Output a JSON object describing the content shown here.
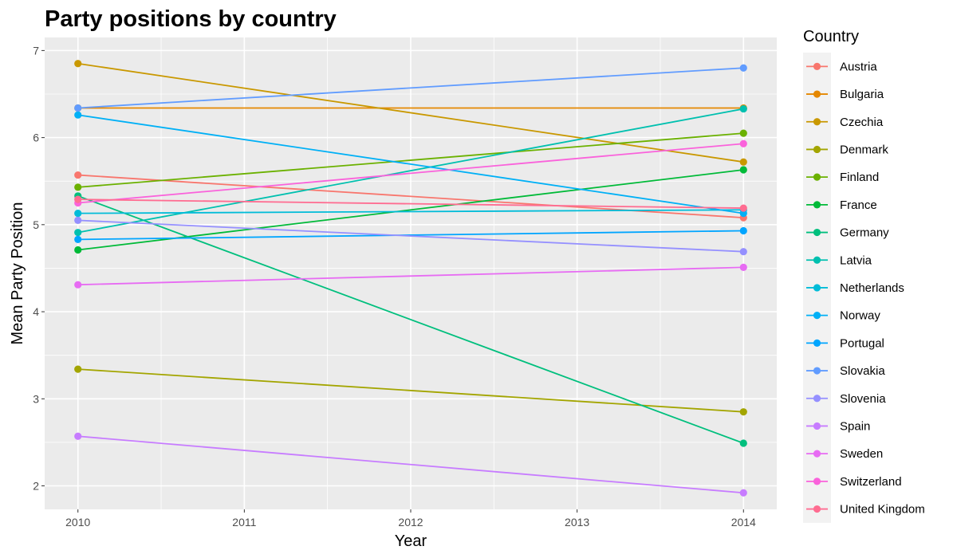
{
  "chart_data": {
    "type": "line",
    "title": "Party positions by country",
    "xlabel": "Year",
    "ylabel": "Mean Party Position",
    "x": [
      2010,
      2014
    ],
    "x_ticks": [
      2010,
      2011,
      2012,
      2013,
      2014
    ],
    "y_ticks": [
      2,
      3,
      4,
      5,
      6,
      7
    ],
    "xlim": [
      2009.8,
      2014.2
    ],
    "ylim": [
      1.73,
      7.15
    ],
    "grid": true,
    "legend": {
      "title": "Country",
      "position": "right"
    },
    "series": [
      {
        "name": "Austria",
        "color": "#F8766D",
        "values": [
          5.57,
          5.08
        ]
      },
      {
        "name": "Bulgaria",
        "color": "#E58700",
        "values": [
          6.34,
          6.34
        ]
      },
      {
        "name": "Czechia",
        "color": "#C99800",
        "values": [
          6.85,
          5.72
        ]
      },
      {
        "name": "Denmark",
        "color": "#A3A500",
        "values": [
          3.34,
          2.85
        ]
      },
      {
        "name": "Finland",
        "color": "#6BB100",
        "values": [
          5.43,
          6.05
        ]
      },
      {
        "name": "France",
        "color": "#00BA38",
        "values": [
          4.71,
          5.63
        ]
      },
      {
        "name": "Germany",
        "color": "#00BF7D",
        "values": [
          5.33,
          2.49
        ]
      },
      {
        "name": "Latvia",
        "color": "#00C0AF",
        "values": [
          4.91,
          6.33
        ]
      },
      {
        "name": "Netherlands",
        "color": "#00BCD8",
        "values": [
          5.13,
          5.17
        ]
      },
      {
        "name": "Norway",
        "color": "#00B0F6",
        "values": [
          6.26,
          5.13
        ]
      },
      {
        "name": "Portugal",
        "color": "#00A5FF",
        "values": [
          4.83,
          4.93
        ]
      },
      {
        "name": "Slovakia",
        "color": "#619CFF",
        "values": [
          6.34,
          6.8
        ]
      },
      {
        "name": "Slovenia",
        "color": "#9590FF",
        "values": [
          5.05,
          4.69
        ]
      },
      {
        "name": "Spain",
        "color": "#C77CFF",
        "values": [
          2.57,
          1.92
        ]
      },
      {
        "name": "Sweden",
        "color": "#E76BF3",
        "values": [
          4.31,
          4.51
        ]
      },
      {
        "name": "Switzerland",
        "color": "#FA62DB",
        "values": [
          5.25,
          5.93
        ]
      },
      {
        "name": "United Kingdom",
        "color": "#FF6C91",
        "values": [
          5.29,
          5.19
        ]
      }
    ]
  }
}
